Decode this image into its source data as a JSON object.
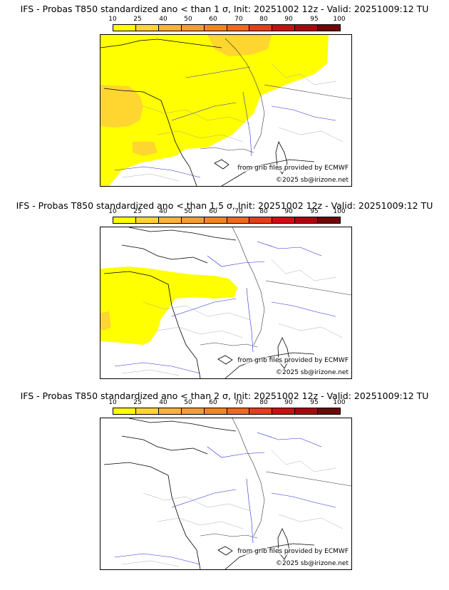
{
  "colorbar": {
    "ticks": [
      "10",
      "25",
      "40",
      "50",
      "60",
      "70",
      "80",
      "90",
      "95",
      "100"
    ],
    "colors": [
      "#ffff00",
      "#ffd530",
      "#f9b23b",
      "#f69c35",
      "#f28521",
      "#f0691c",
      "#e83c1c",
      "#cc0e14",
      "#a8070f",
      "#6e0808"
    ]
  },
  "panels": [
    {
      "title": "IFS - Probas T850  standardized ano < than 1 σ, Init: 20251002 12z - Valid: 20251009:12 TU",
      "source_note": "from grib files provided by ECMWF",
      "copyright": "©2025 sb@irizone.net",
      "coverage": "large"
    },
    {
      "title": "IFS - Probas T850  standardized ano < than 1.5 σ, Init: 20251002 12z - Valid: 20251009:12 TU",
      "source_note": "from grib files provided by ECMWF",
      "copyright": "©2025 sb@irizone.net",
      "coverage": "medium"
    },
    {
      "title": "IFS - Probas T850  standardized ano < than 2 σ, Init: 20251002 12z - Valid: 20251009:12 TU",
      "source_note": "from grib files provided by ECMWF",
      "copyright": "©2025 sb@irizone.net",
      "coverage": "none"
    }
  ]
}
